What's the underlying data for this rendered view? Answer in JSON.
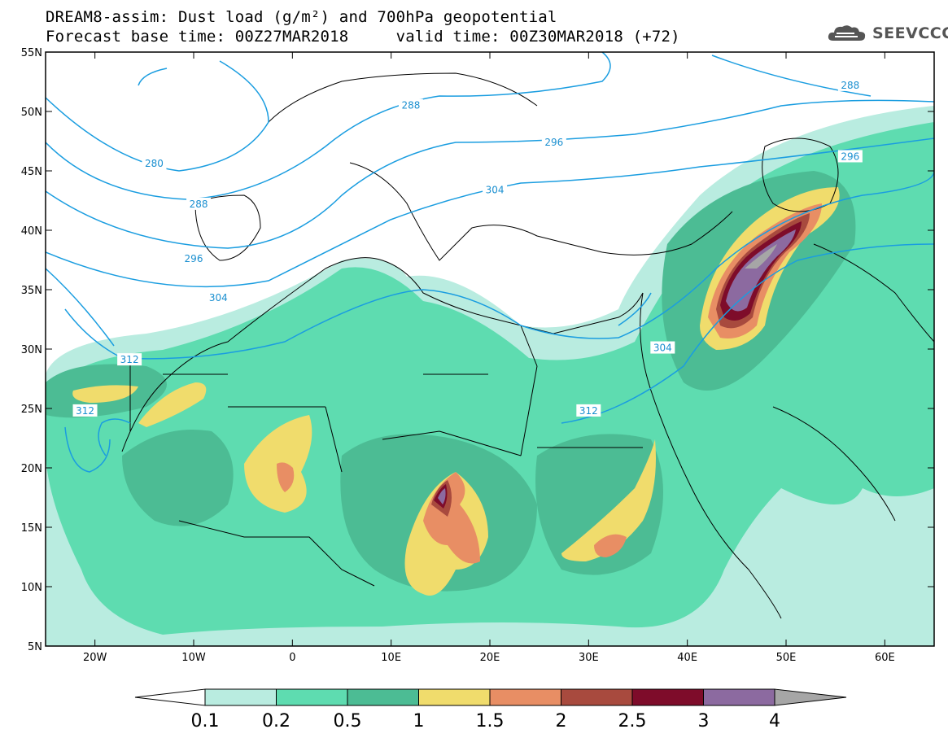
{
  "header": {
    "title_line1": "DREAM8-assim: Dust load (g/m²) and 700hPa geopotential",
    "title_line2": "Forecast base time: 00Z27MAR2018     valid time: 00Z30MAR2018 (+72)",
    "logo_text": "SEEVCCC"
  },
  "map": {
    "lon_ticks": [
      "20W",
      "10W",
      "0",
      "10E",
      "20E",
      "30E",
      "40E",
      "50E",
      "60E"
    ],
    "lat_ticks": [
      "55N",
      "50N",
      "45N",
      "40N",
      "35N",
      "30N",
      "25N",
      "20N",
      "15N",
      "10N",
      "5N"
    ],
    "lon_range": [
      -25,
      65
    ],
    "lat_range": [
      5,
      55
    ],
    "contour_labels": [
      {
        "text": "288",
        "lon": 12,
        "lat": 50.5
      },
      {
        "text": "288",
        "lon": 56.5,
        "lat": 52.2
      },
      {
        "text": "280",
        "lon": -14,
        "lat": 45.6
      },
      {
        "text": "288",
        "lon": -9.5,
        "lat": 42.2
      },
      {
        "text": "296",
        "lon": 26.5,
        "lat": 47.4
      },
      {
        "text": "296",
        "lon": 56.5,
        "lat": 46.2
      },
      {
        "text": "296",
        "lon": -10,
        "lat": 37.6
      },
      {
        "text": "304",
        "lon": 20.5,
        "lat": 43.4
      },
      {
        "text": "304",
        "lon": -7.5,
        "lat": 34.3
      },
      {
        "text": "304",
        "lon": 37.5,
        "lat": 30.1
      },
      {
        "text": "312",
        "lon": -16.5,
        "lat": 29.1
      },
      {
        "text": "312",
        "lon": -21,
        "lat": 24.8
      },
      {
        "text": "312",
        "lon": 30,
        "lat": 24.8
      }
    ],
    "contour_color": "#1a9de0"
  },
  "colorbar": {
    "labels": [
      "0.1",
      "0.2",
      "0.5",
      "1",
      "1.5",
      "2",
      "2.5",
      "3",
      "4"
    ],
    "colors": [
      "#b9ece0",
      "#5edcb0",
      "#4cbc94",
      "#f0dc6c",
      "#e88e64",
      "#a84a3e",
      "#7e0c2a",
      "#8c6aa0"
    ],
    "lower_extend_color": "#ffffff",
    "upper_extend_color": "#a6a6a6"
  }
}
